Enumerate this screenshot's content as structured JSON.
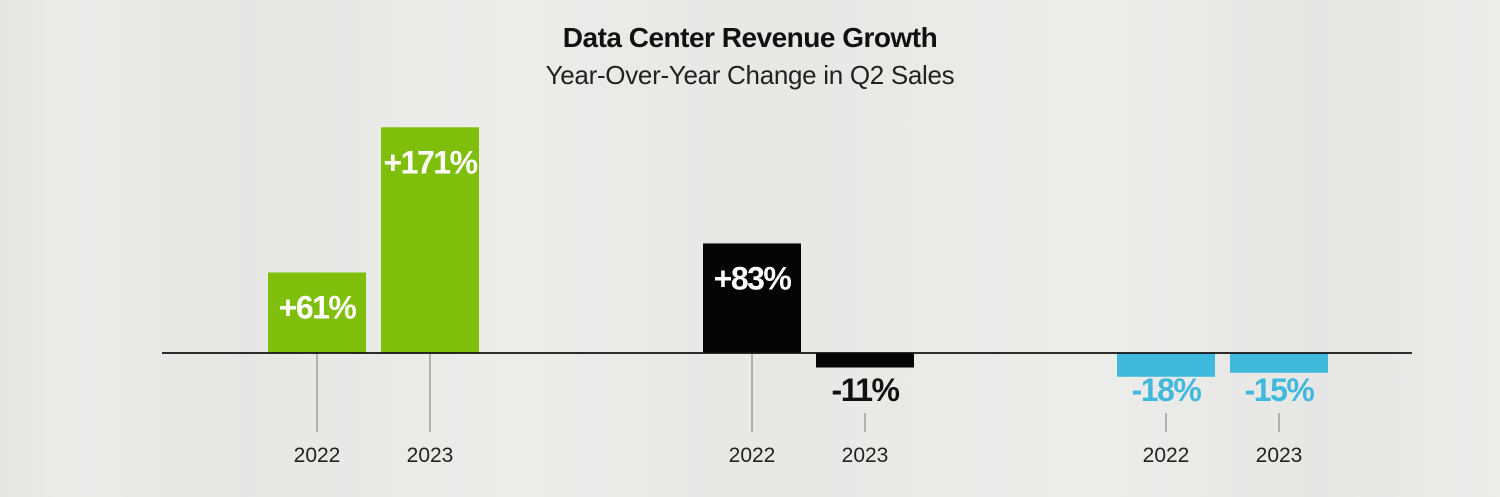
{
  "chart_data": {
    "type": "bar",
    "title": "Data Center Revenue Growth",
    "subtitle": "Year-Over-Year Change in Q2 Sales",
    "ylim": [
      -30,
      190
    ],
    "groups": [
      {
        "color": "#7fbf0b",
        "label_color": "#ffffff",
        "neg_label_color": "#ffffff",
        "bars": [
          {
            "category": "2022",
            "value": 61,
            "label": "+61%"
          },
          {
            "category": "2023",
            "value": 171,
            "label": "+171%"
          }
        ]
      },
      {
        "color": "#050505",
        "label_color": "#ffffff",
        "neg_label_color": "#111111",
        "bars": [
          {
            "category": "2022",
            "value": 83,
            "label": "+83%"
          },
          {
            "category": "2023",
            "value": -11,
            "label": "-11%"
          }
        ]
      },
      {
        "color": "#41b9dc",
        "label_color": "#41b9dc",
        "neg_label_color": "#41b9dc",
        "bars": [
          {
            "category": "2022",
            "value": -18,
            "label": "-18%"
          },
          {
            "category": "2023",
            "value": -15,
            "label": "-15%"
          }
        ]
      }
    ]
  }
}
